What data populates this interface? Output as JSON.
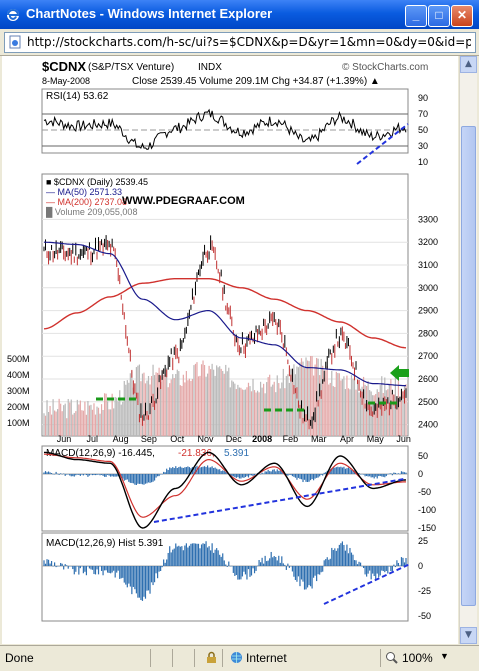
{
  "window": {
    "title": "ChartNotes - Windows Internet Explorer",
    "address": "http://stockcharts.com/h-sc/ui?s=$CDNX&p=D&yr=1&mn=0&dy=0&id=p49789888416&a=13937"
  },
  "status": {
    "left": "Done",
    "zone": "Internet",
    "zoom": "100%"
  },
  "chart": {
    "symbol": "$CDNX",
    "name": "(S&P/TSX Venture)",
    "exchange": "INDX",
    "date": "8-May-2008",
    "ohlc_text": "Close 2539.45  Volume 209.1M  Chg +34.87 (+1.39%) ▲",
    "brand": "© StockCharts.com",
    "watermark": "WWW.PDEGRAAF.COM",
    "rsi_label": "RSI(14) 53.62",
    "rsi_ticks": [
      "90",
      "70",
      "50",
      "30",
      "10"
    ],
    "legend": [
      {
        "text": "■ $CDNX (Daily) 2539.45",
        "color": "#000000"
      },
      {
        "text": "— MA(50) 2571.33",
        "color": "#1a1a8c"
      },
      {
        "text": "— MA(200) 2737.08",
        "color": "#d0312d"
      },
      {
        "text": "█ Volume 209,055,008",
        "color": "#777777"
      }
    ],
    "price_ticks": [
      "3300",
      "3200",
      "3100",
      "3000",
      "2900",
      "2800",
      "2700",
      "2600",
      "2500",
      "2400"
    ],
    "volume_ticks": [
      "500M",
      "400M",
      "300M",
      "200M",
      "100M"
    ],
    "months": [
      "Jun",
      "Jul",
      "Aug",
      "Sep",
      "Oct",
      "Nov",
      "Dec",
      "2008",
      "Feb",
      "Mar",
      "Apr",
      "May",
      "Jun"
    ],
    "macd_label_main": "MACD(12,26,9) -16.445,",
    "macd_label_signal": "-21.836,",
    "macd_label_hist": "5.391",
    "macd_ticks": [
      "50",
      "0",
      "-50",
      "-100",
      "-150"
    ],
    "hist_label": "MACD(12,26,9) Hist 5.391",
    "hist_ticks": [
      "25",
      "0",
      "-25",
      "-50"
    ],
    "colors": {
      "ma50": "#1a1a8c",
      "ma200": "#d0312d",
      "macd": "#000000",
      "signal": "#d0312d",
      "hist": "#2e6fb0",
      "trend": "#2233dd",
      "support": "#1a9a1a",
      "arrow": "#1aa01a",
      "vol_up": "#e4a8a8",
      "vol_down": "#b8b8b8"
    }
  },
  "chart_data": {
    "type": "line",
    "title": "$CDNX (S&P/TSX Venture) INDX",
    "x": [
      "Jun",
      "Jul",
      "Aug",
      "Sep",
      "Oct",
      "Nov",
      "Dec",
      "2008",
      "Feb",
      "Mar",
      "Apr",
      "May"
    ],
    "series": [
      {
        "name": "$CDNX (Daily)",
        "values": [
          3160,
          3150,
          3180,
          2440,
          2700,
          3170,
          2750,
          2850,
          2420,
          2780,
          2460,
          2539
        ]
      },
      {
        "name": "MA(50)",
        "values": [
          3200,
          3190,
          3150,
          2950,
          2860,
          2900,
          2780,
          2750,
          2650,
          2640,
          2580,
          2571
        ]
      },
      {
        "name": "MA(200)",
        "values": [
          2820,
          2890,
          2960,
          3020,
          3040,
          3040,
          3000,
          2950,
          2900,
          2850,
          2780,
          2737
        ]
      }
    ],
    "volume": [
      110,
      120,
      140,
      260,
      240,
      280,
      230,
      220,
      300,
      240,
      210,
      209
    ],
    "rsi": [
      62,
      55,
      58,
      28,
      52,
      70,
      48,
      62,
      35,
      65,
      42,
      53.62
    ],
    "macd": [
      60,
      40,
      30,
      -150,
      -40,
      60,
      -30,
      30,
      -90,
      50,
      -40,
      -16.445
    ],
    "macd_signal": [
      55,
      45,
      35,
      -120,
      -60,
      40,
      -20,
      20,
      -70,
      30,
      -30,
      -21.836
    ],
    "macd_hist": [
      5,
      -5,
      -5,
      -30,
      20,
      20,
      -10,
      10,
      -20,
      20,
      -10,
      5.391
    ],
    "ylim": [
      2400,
      3300
    ]
  }
}
